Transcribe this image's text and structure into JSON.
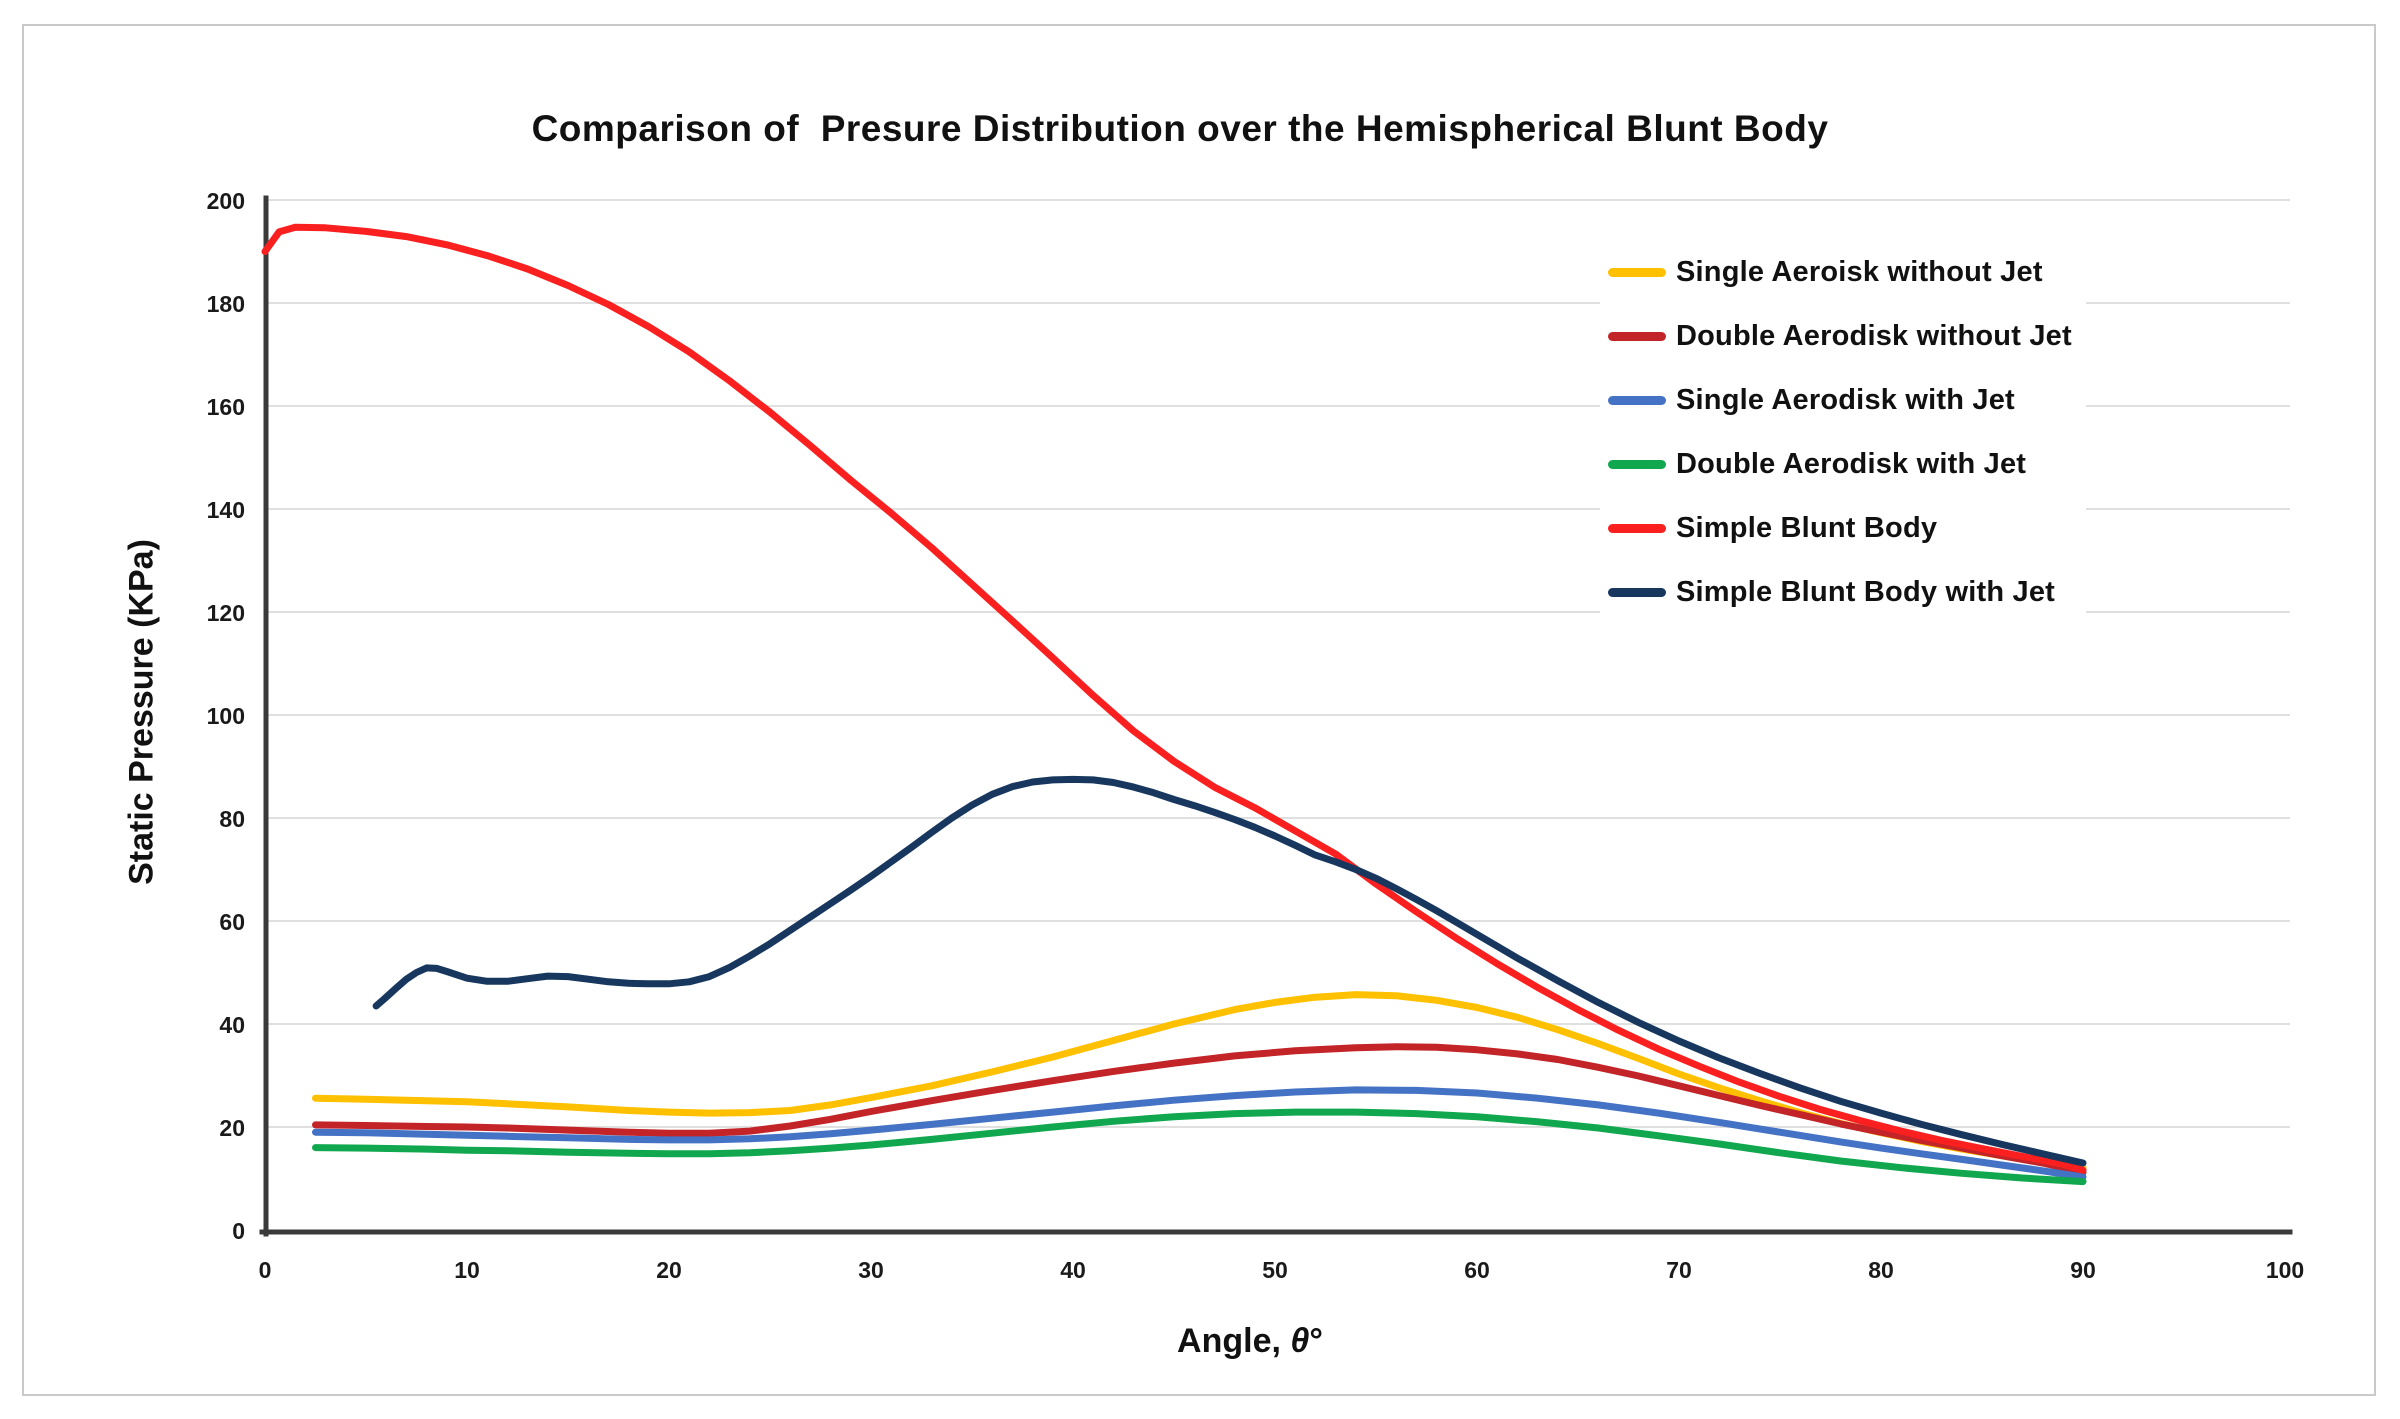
{
  "colors": {
    "frame_border": "#c9c9c9",
    "gridline": "#e0e0e0",
    "axis_spine": "#3a3a3a",
    "text": "#111111",
    "background": "#ffffff"
  },
  "chart_data": {
    "type": "line",
    "title": "Comparison of  Presure Distribution over the Hemispherical Blunt Body",
    "ylabel": "Static Pressure (KPa)",
    "xlabel": {
      "prefix": "Angle, ",
      "symbol": "θ",
      "suffix": "°"
    },
    "grid": "horizontal",
    "legend_position": "upper-right",
    "x_axis": {
      "min": 0,
      "max": 100,
      "ticks": [
        0,
        10,
        20,
        30,
        40,
        50,
        60,
        70,
        80,
        90,
        100
      ]
    },
    "y_axis": {
      "min": 0,
      "max": 200,
      "ticks": [
        0,
        20,
        40,
        60,
        80,
        100,
        120,
        140,
        160,
        180,
        200
      ]
    },
    "series": [
      {
        "name": "Single Aeroisk without Jet",
        "color": "#FFC000",
        "points": [
          [
            2.5,
            25.6
          ],
          [
            5,
            25.4
          ],
          [
            8,
            25.1
          ],
          [
            10,
            24.9
          ],
          [
            12,
            24.5
          ],
          [
            15,
            23.9
          ],
          [
            18,
            23.2
          ],
          [
            20,
            22.9
          ],
          [
            22,
            22.7
          ],
          [
            24,
            22.8
          ],
          [
            26,
            23.2
          ],
          [
            28,
            24.3
          ],
          [
            30,
            25.7
          ],
          [
            33,
            28
          ],
          [
            36,
            30.7
          ],
          [
            39,
            33.6
          ],
          [
            42,
            36.8
          ],
          [
            45,
            40
          ],
          [
            48,
            42.8
          ],
          [
            50,
            44.2
          ],
          [
            52,
            45.2
          ],
          [
            54,
            45.7
          ],
          [
            56,
            45.5
          ],
          [
            58,
            44.6
          ],
          [
            60,
            43.2
          ],
          [
            62,
            41.3
          ],
          [
            64,
            38.9
          ],
          [
            66,
            36.2
          ],
          [
            68,
            33.3
          ],
          [
            70,
            30.3
          ],
          [
            72,
            27.6
          ],
          [
            74,
            25.1
          ],
          [
            76,
            22.8
          ],
          [
            78,
            20.7
          ],
          [
            80,
            18.9
          ],
          [
            82,
            17.2
          ],
          [
            84,
            15.7
          ],
          [
            86,
            14.4
          ],
          [
            88,
            13.2
          ],
          [
            90,
            12.1
          ]
        ]
      },
      {
        "name": "Double Aerodisk without Jet",
        "color": "#C22428",
        "points": [
          [
            2.5,
            20.4
          ],
          [
            5,
            20.3
          ],
          [
            8,
            20.1
          ],
          [
            10,
            20
          ],
          [
            12,
            19.8
          ],
          [
            15,
            19.4
          ],
          [
            18,
            19
          ],
          [
            20,
            18.8
          ],
          [
            22,
            18.8
          ],
          [
            24,
            19.2
          ],
          [
            26,
            20.2
          ],
          [
            28,
            21.5
          ],
          [
            30,
            23
          ],
          [
            33,
            25.1
          ],
          [
            36,
            27.1
          ],
          [
            39,
            29
          ],
          [
            42,
            30.8
          ],
          [
            45,
            32.4
          ],
          [
            48,
            33.8
          ],
          [
            51,
            34.8
          ],
          [
            54,
            35.4
          ],
          [
            56,
            35.6
          ],
          [
            58,
            35.5
          ],
          [
            60,
            35
          ],
          [
            62,
            34.2
          ],
          [
            64,
            33.1
          ],
          [
            66,
            31.6
          ],
          [
            68,
            29.9
          ],
          [
            70,
            28
          ],
          [
            72,
            26.1
          ],
          [
            74,
            24.2
          ],
          [
            76,
            22.4
          ],
          [
            78,
            20.6
          ],
          [
            80,
            19
          ],
          [
            82,
            17.4
          ],
          [
            84,
            15.9
          ],
          [
            86,
            14.4
          ],
          [
            88,
            13
          ],
          [
            90,
            11.2
          ]
        ]
      },
      {
        "name": "Single Aerodisk with Jet",
        "color": "#4472C4",
        "points": [
          [
            2.5,
            19
          ],
          [
            5,
            18.9
          ],
          [
            8,
            18.6
          ],
          [
            10,
            18.4
          ],
          [
            12,
            18.2
          ],
          [
            15,
            17.9
          ],
          [
            18,
            17.6
          ],
          [
            20,
            17.5
          ],
          [
            22,
            17.5
          ],
          [
            24,
            17.7
          ],
          [
            26,
            18.1
          ],
          [
            28,
            18.7
          ],
          [
            30,
            19.4
          ],
          [
            33,
            20.5
          ],
          [
            36,
            21.7
          ],
          [
            39,
            22.9
          ],
          [
            42,
            24.1
          ],
          [
            45,
            25.2
          ],
          [
            48,
            26.1
          ],
          [
            51,
            26.8
          ],
          [
            54,
            27.2
          ],
          [
            57,
            27.1
          ],
          [
            60,
            26.6
          ],
          [
            63,
            25.6
          ],
          [
            66,
            24.3
          ],
          [
            69,
            22.7
          ],
          [
            72,
            20.9
          ],
          [
            75,
            19
          ],
          [
            78,
            17.1
          ],
          [
            80,
            15.9
          ],
          [
            82,
            14.8
          ],
          [
            84,
            13.7
          ],
          [
            86,
            12.6
          ],
          [
            88,
            11.5
          ],
          [
            90,
            10.3
          ]
        ]
      },
      {
        "name": "Double Aerodisk with Jet",
        "color": "#10A74F",
        "points": [
          [
            2.5,
            16
          ],
          [
            5,
            15.9
          ],
          [
            8,
            15.7
          ],
          [
            10,
            15.5
          ],
          [
            12,
            15.4
          ],
          [
            15,
            15.1
          ],
          [
            18,
            14.9
          ],
          [
            20,
            14.8
          ],
          [
            22,
            14.8
          ],
          [
            24,
            15
          ],
          [
            26,
            15.4
          ],
          [
            28,
            15.9
          ],
          [
            30,
            16.5
          ],
          [
            33,
            17.6
          ],
          [
            36,
            18.8
          ],
          [
            39,
            20
          ],
          [
            42,
            21.1
          ],
          [
            45,
            22
          ],
          [
            48,
            22.6
          ],
          [
            51,
            22.9
          ],
          [
            54,
            22.9
          ],
          [
            57,
            22.6
          ],
          [
            60,
            22
          ],
          [
            63,
            21
          ],
          [
            66,
            19.8
          ],
          [
            69,
            18.3
          ],
          [
            72,
            16.7
          ],
          [
            75,
            15
          ],
          [
            78,
            13.4
          ],
          [
            81,
            12.1
          ],
          [
            84,
            11
          ],
          [
            87,
            10.1
          ],
          [
            90,
            9.4
          ]
        ]
      },
      {
        "name": "Simple Blunt Body",
        "color": "#FB2020",
        "points": [
          [
            0,
            190
          ],
          [
            0.7,
            193.8
          ],
          [
            1.5,
            194.7
          ],
          [
            3,
            194.6
          ],
          [
            5,
            193.9
          ],
          [
            7,
            192.9
          ],
          [
            9,
            191.3
          ],
          [
            11,
            189.2
          ],
          [
            13,
            186.6
          ],
          [
            15,
            183.4
          ],
          [
            17,
            179.7
          ],
          [
            19,
            175.4
          ],
          [
            21,
            170.5
          ],
          [
            23,
            164.9
          ],
          [
            25,
            158.8
          ],
          [
            27,
            152.3
          ],
          [
            29,
            145.6
          ],
          [
            31,
            139.2
          ],
          [
            33,
            132.5
          ],
          [
            35,
            125.4
          ],
          [
            37,
            118.3
          ],
          [
            39,
            111.1
          ],
          [
            41,
            103.8
          ],
          [
            43,
            96.9
          ],
          [
            45,
            91
          ],
          [
            47,
            86
          ],
          [
            49,
            82
          ],
          [
            51,
            77.5
          ],
          [
            53,
            73
          ],
          [
            55,
            67.2
          ],
          [
            57,
            61.8
          ],
          [
            59,
            56.6
          ],
          [
            61,
            51.7
          ],
          [
            63,
            47.1
          ],
          [
            65,
            42.8
          ],
          [
            67,
            38.8
          ],
          [
            69,
            35.1
          ],
          [
            71,
            31.8
          ],
          [
            73,
            28.7
          ],
          [
            75,
            25.9
          ],
          [
            77,
            23.4
          ],
          [
            79,
            21.2
          ],
          [
            81,
            19.2
          ],
          [
            83,
            17.4
          ],
          [
            85,
            15.8
          ],
          [
            87,
            14.3
          ],
          [
            89,
            12.8
          ],
          [
            90,
            11.6
          ]
        ]
      },
      {
        "name": "Simple Blunt Body with Jet",
        "color": "#17375E",
        "points": [
          [
            5.5,
            43.5
          ],
          [
            6,
            45.2
          ],
          [
            6.5,
            47
          ],
          [
            7,
            48.7
          ],
          [
            7.5,
            50
          ],
          [
            8,
            50.9
          ],
          [
            8.5,
            50.8
          ],
          [
            9,
            50.2
          ],
          [
            10,
            48.9
          ],
          [
            11,
            48.3
          ],
          [
            12,
            48.3
          ],
          [
            13,
            48.8
          ],
          [
            14,
            49.3
          ],
          [
            15,
            49.2
          ],
          [
            16,
            48.7
          ],
          [
            17,
            48.2
          ],
          [
            18,
            47.9
          ],
          [
            19,
            47.8
          ],
          [
            20,
            47.8
          ],
          [
            21,
            48.2
          ],
          [
            22,
            49.2
          ],
          [
            23,
            51
          ],
          [
            24,
            53.2
          ],
          [
            25,
            55.6
          ],
          [
            26,
            58.2
          ],
          [
            27,
            60.8
          ],
          [
            28,
            63.4
          ],
          [
            29,
            66
          ],
          [
            30,
            68.7
          ],
          [
            31,
            71.5
          ],
          [
            32,
            74.3
          ],
          [
            33,
            77.2
          ],
          [
            34,
            80
          ],
          [
            35,
            82.5
          ],
          [
            36,
            84.6
          ],
          [
            37,
            86.1
          ],
          [
            38,
            87
          ],
          [
            39,
            87.4
          ],
          [
            40,
            87.5
          ],
          [
            41,
            87.4
          ],
          [
            42,
            86.9
          ],
          [
            43,
            86
          ],
          [
            44,
            84.9
          ],
          [
            45,
            83.6
          ],
          [
            46,
            82.4
          ],
          [
            47,
            81.1
          ],
          [
            48,
            79.7
          ],
          [
            49,
            78.2
          ],
          [
            50,
            76.5
          ],
          [
            51,
            74.7
          ],
          [
            52,
            72.8
          ],
          [
            53,
            71.5
          ],
          [
            54,
            70
          ],
          [
            55,
            68.3
          ],
          [
            56,
            66.3
          ],
          [
            57,
            64.2
          ],
          [
            58,
            62
          ],
          [
            59,
            59.7
          ],
          [
            60,
            57.4
          ],
          [
            62,
            52.8
          ],
          [
            64,
            48.4
          ],
          [
            66,
            44.2
          ],
          [
            68,
            40.3
          ],
          [
            70,
            36.7
          ],
          [
            72,
            33.4
          ],
          [
            74,
            30.4
          ],
          [
            76,
            27.6
          ],
          [
            78,
            25
          ],
          [
            80,
            22.7
          ],
          [
            82,
            20.5
          ],
          [
            84,
            18.5
          ],
          [
            86,
            16.6
          ],
          [
            88,
            14.8
          ],
          [
            90,
            13
          ]
        ]
      }
    ]
  }
}
